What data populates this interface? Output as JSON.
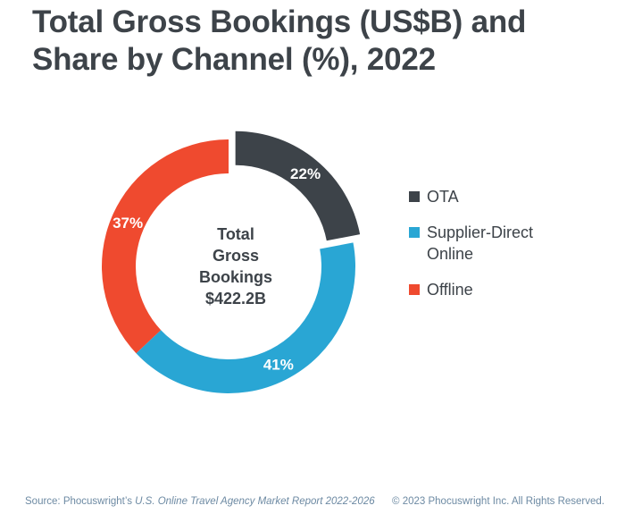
{
  "chart_data": {
    "type": "pie",
    "title_lines": [
      "Total Gross Bookings (US$B) and",
      "Share by Channel (%), 2022"
    ],
    "center_label_lines": [
      "Total",
      "Gross",
      "Bookings",
      "$422.2B"
    ],
    "slices": [
      {
        "name": "OTA",
        "value": 22,
        "label": "22%",
        "color": "#3d4349",
        "exploded": true
      },
      {
        "name": "Supplier-Direct Online",
        "value": 41,
        "label": "41%",
        "color": "#29a6d4",
        "exploded": false
      },
      {
        "name": "Offline",
        "value": 37,
        "label": "37%",
        "color": "#ef4a2f",
        "exploded": false
      }
    ],
    "legend": {
      "placement": "right",
      "entries": [
        {
          "lines": [
            "OTA"
          ],
          "color": "#3d4349"
        },
        {
          "lines": [
            "Supplier-Direct",
            "Online"
          ],
          "color": "#29a6d4"
        },
        {
          "lines": [
            "Offline"
          ],
          "color": "#ef4a2f"
        }
      ]
    }
  },
  "footer": {
    "source_prefix": "Source: Phocuswright’s ",
    "source_title": "U.S. Online Travel Agency Market Report 2022-2026",
    "copyright": "© 2023 Phocuswright Inc. All Rights Reserved."
  }
}
